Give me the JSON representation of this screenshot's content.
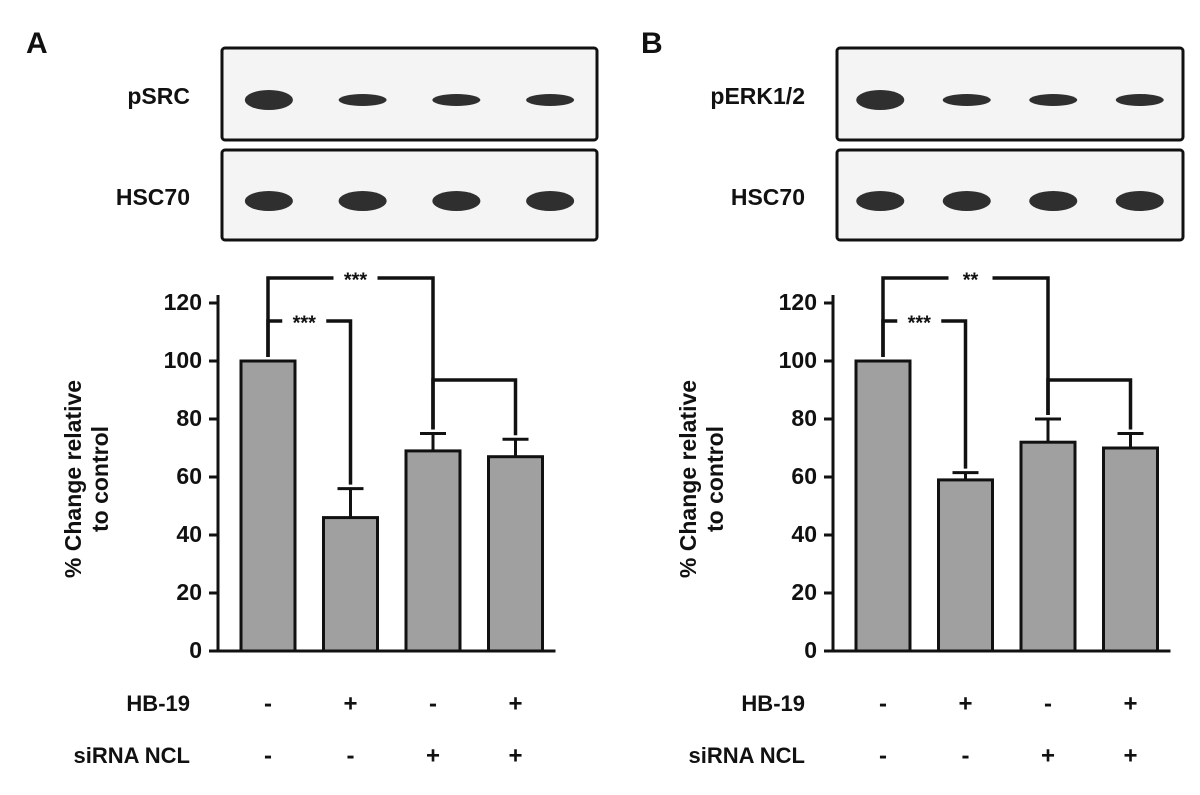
{
  "chart_data": [
    {
      "type": "bar",
      "panel": "A",
      "blots": [
        "pSRC",
        "HSC70"
      ],
      "ylabel": [
        "% Change relative",
        "to control"
      ],
      "values": [
        100,
        46,
        69,
        67
      ],
      "errors": [
        0,
        10,
        6,
        6
      ],
      "color": "#a0a0a0",
      "ylim": [
        0,
        120
      ],
      "yticks": [
        0,
        20,
        40,
        60,
        80,
        100,
        120
      ],
      "conditions": [
        {
          "name": "HB-19",
          "values": [
            "-",
            "+",
            "-",
            "+"
          ]
        },
        {
          "name": "siRNA NCL",
          "values": [
            "-",
            "-",
            "+",
            "+"
          ]
        }
      ],
      "annotations": [
        {
          "label": "***",
          "between": [
            0,
            1
          ]
        },
        {
          "label": "***",
          "between": [
            0,
            2
          ]
        },
        {
          "between": [
            2,
            3
          ]
        }
      ]
    },
    {
      "type": "bar",
      "panel": "B",
      "blots": [
        "pERK1/2",
        "HSC70"
      ],
      "ylabel": [
        "% Change relative",
        "to control"
      ],
      "values": [
        100,
        59,
        72,
        70
      ],
      "errors": [
        0,
        2.5,
        8,
        5
      ],
      "color": "#a0a0a0",
      "ylim": [
        0,
        120
      ],
      "yticks": [
        0,
        20,
        40,
        60,
        80,
        100,
        120
      ],
      "conditions": [
        {
          "name": "HB-19",
          "values": [
            "-",
            "+",
            "-",
            "+"
          ]
        },
        {
          "name": "siRNA NCL",
          "values": [
            "-",
            "-",
            "+",
            "+"
          ]
        }
      ],
      "annotations": [
        {
          "label": "***",
          "between": [
            0,
            1
          ]
        },
        {
          "label": "**",
          "between": [
            0,
            2
          ]
        },
        {
          "between": [
            2,
            3
          ]
        }
      ]
    }
  ]
}
